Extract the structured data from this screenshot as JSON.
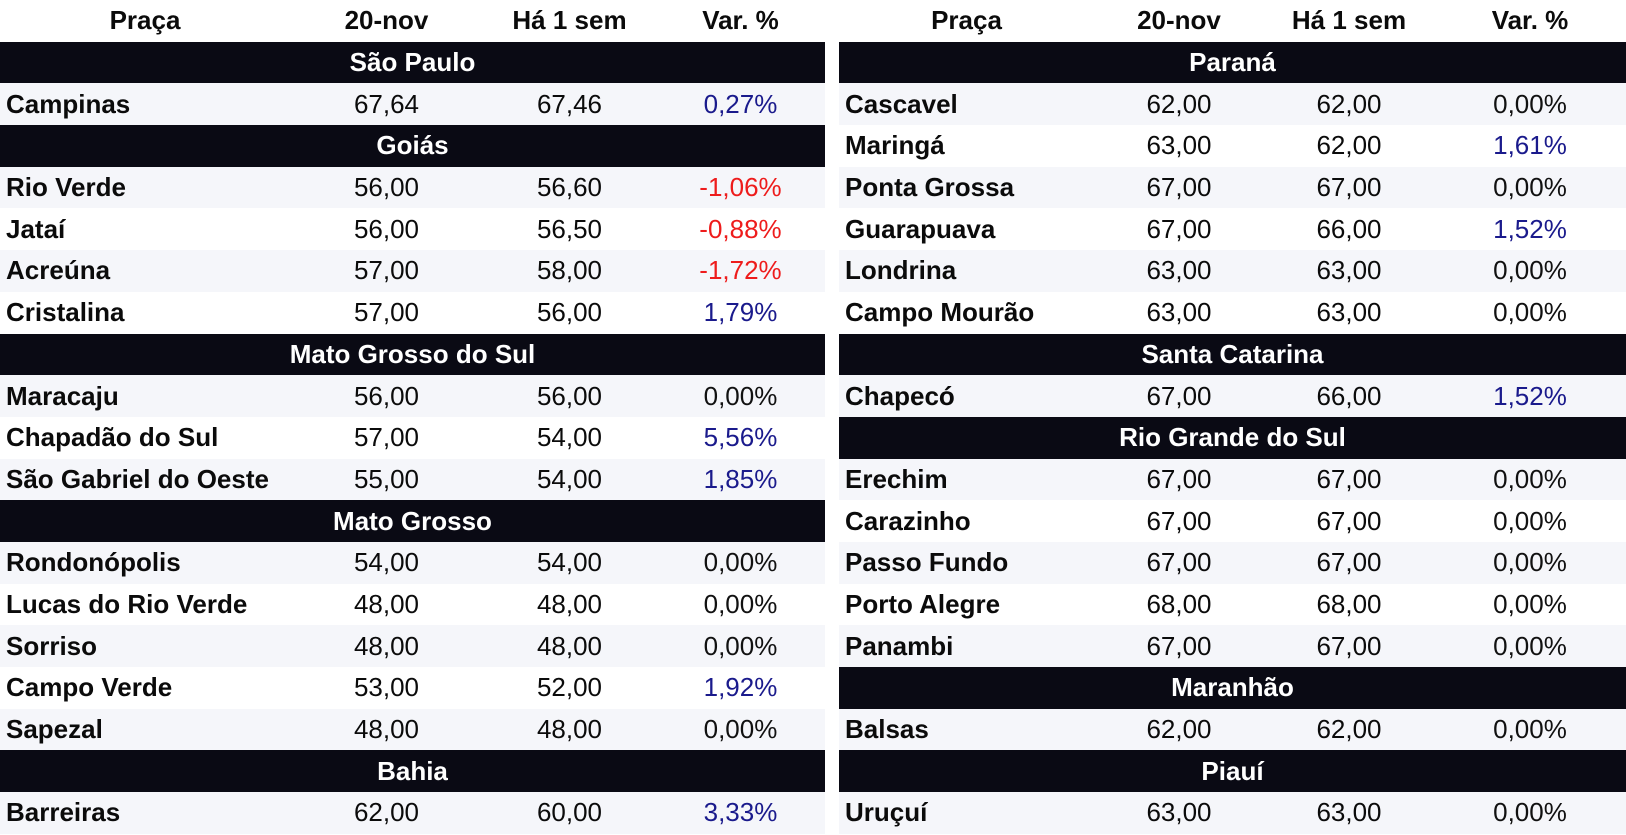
{
  "headers": {
    "praca": "Praça",
    "date": "20-nov",
    "week": "Há 1 sem",
    "var": "Var. %"
  },
  "left": [
    {
      "region": "São Paulo",
      "rows": [
        {
          "name": "Campinas",
          "now": "67,64",
          "week": "67,46",
          "var": "0,27%",
          "trend": "pos"
        }
      ]
    },
    {
      "region": "Goiás",
      "rows": [
        {
          "name": "Rio Verde",
          "now": "56,00",
          "week": "56,60",
          "var": "-1,06%",
          "trend": "neg"
        },
        {
          "name": "Jataí",
          "now": "56,00",
          "week": "56,50",
          "var": "-0,88%",
          "trend": "neg"
        },
        {
          "name": "Acreúna",
          "now": "57,00",
          "week": "58,00",
          "var": "-1,72%",
          "trend": "neg"
        },
        {
          "name": "Cristalina",
          "now": "57,00",
          "week": "56,00",
          "var": "1,79%",
          "trend": "pos"
        }
      ]
    },
    {
      "region": "Mato Grosso do Sul",
      "rows": [
        {
          "name": "Maracaju",
          "now": "56,00",
          "week": "56,00",
          "var": "0,00%",
          "trend": "zero"
        },
        {
          "name": "Chapadão do Sul",
          "now": "57,00",
          "week": "54,00",
          "var": "5,56%",
          "trend": "pos"
        },
        {
          "name": "São Gabriel do Oeste",
          "now": "55,00",
          "week": "54,00",
          "var": "1,85%",
          "trend": "pos"
        }
      ]
    },
    {
      "region": "Mato Grosso",
      "rows": [
        {
          "name": "Rondonópolis",
          "now": "54,00",
          "week": "54,00",
          "var": "0,00%",
          "trend": "zero"
        },
        {
          "name": "Lucas do Rio Verde",
          "now": "48,00",
          "week": "48,00",
          "var": "0,00%",
          "trend": "zero"
        },
        {
          "name": "Sorriso",
          "now": "48,00",
          "week": "48,00",
          "var": "0,00%",
          "trend": "zero"
        },
        {
          "name": "Campo Verde",
          "now": "53,00",
          "week": "52,00",
          "var": "1,92%",
          "trend": "pos"
        },
        {
          "name": "Sapezal",
          "now": "48,00",
          "week": "48,00",
          "var": "0,00%",
          "trend": "zero"
        }
      ]
    },
    {
      "region": "Bahia",
      "rows": [
        {
          "name": "Barreiras",
          "now": "62,00",
          "week": "60,00",
          "var": "3,33%",
          "trend": "pos"
        }
      ]
    }
  ],
  "right": [
    {
      "region": "Paraná",
      "rows": [
        {
          "name": "Cascavel",
          "now": "62,00",
          "week": "62,00",
          "var": "0,00%",
          "trend": "zero"
        },
        {
          "name": "Maringá",
          "now": "63,00",
          "week": "62,00",
          "var": "1,61%",
          "trend": "pos"
        },
        {
          "name": "Ponta Grossa",
          "now": "67,00",
          "week": "67,00",
          "var": "0,00%",
          "trend": "zero"
        },
        {
          "name": "Guarapuava",
          "now": "67,00",
          "week": "66,00",
          "var": "1,52%",
          "trend": "pos"
        },
        {
          "name": "Londrina",
          "now": "63,00",
          "week": "63,00",
          "var": "0,00%",
          "trend": "zero"
        },
        {
          "name": "Campo Mourão",
          "now": "63,00",
          "week": "63,00",
          "var": "0,00%",
          "trend": "zero"
        }
      ]
    },
    {
      "region": "Santa Catarina",
      "rows": [
        {
          "name": "Chapecó",
          "now": "67,00",
          "week": "66,00",
          "var": "1,52%",
          "trend": "pos"
        }
      ]
    },
    {
      "region": "Rio Grande do Sul",
      "rows": [
        {
          "name": "Erechim",
          "now": "67,00",
          "week": "67,00",
          "var": "0,00%",
          "trend": "zero"
        },
        {
          "name": "Carazinho",
          "now": "67,00",
          "week": "67,00",
          "var": "0,00%",
          "trend": "zero"
        },
        {
          "name": "Passo Fundo",
          "now": "67,00",
          "week": "67,00",
          "var": "0,00%",
          "trend": "zero"
        },
        {
          "name": "Porto Alegre",
          "now": "68,00",
          "week": "68,00",
          "var": "0,00%",
          "trend": "zero"
        },
        {
          "name": "Panambi",
          "now": "67,00",
          "week": "67,00",
          "var": "0,00%",
          "trend": "zero"
        }
      ]
    },
    {
      "region": "Maranhão",
      "rows": [
        {
          "name": "Balsas",
          "now": "62,00",
          "week": "62,00",
          "var": "0,00%",
          "trend": "zero"
        }
      ]
    },
    {
      "region": "Piauí",
      "rows": [
        {
          "name": "Uruçuí",
          "now": "63,00",
          "week": "63,00",
          "var": "0,00%",
          "trend": "zero"
        }
      ]
    }
  ]
}
